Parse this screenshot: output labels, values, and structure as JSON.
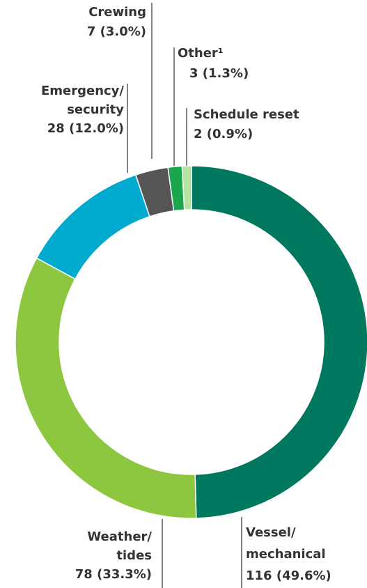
{
  "chart_data": {
    "type": "donut",
    "categories": [
      "Vessel/ mechanical",
      "Weather/ tides",
      "Emergency/ security",
      "Crewing",
      "Other¹",
      "Schedule reset"
    ],
    "values": [
      116,
      78,
      28,
      7,
      3,
      2
    ],
    "value_labels": [
      "116 (49.6%)",
      "78 (33.3%)",
      "28 (12.0%)",
      "7 (3.0%)",
      "3 (1.3%)",
      "2 (0.9%)"
    ],
    "colors": [
      "#00785f",
      "#8dc63f",
      "#00a9ce",
      "#555555",
      "#1aa64a",
      "#b5e3a0"
    ]
  }
}
